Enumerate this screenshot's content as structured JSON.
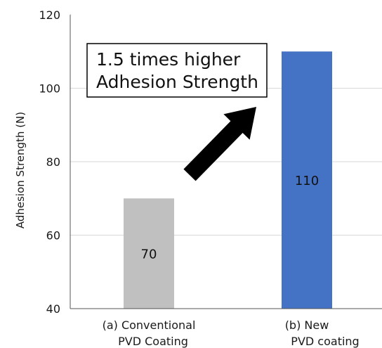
{
  "chart_data": {
    "type": "bar",
    "categories": [
      [
        "(a) Conventional",
        "PVD Coating"
      ],
      [
        "(b) New",
        "PVD coating"
      ]
    ],
    "values": [
      70,
      110
    ],
    "data_labels": [
      "70",
      "110"
    ],
    "bar_colors": [
      "#c0c0c0",
      "#4472c4"
    ],
    "ylabel": "Adhesion Strength (N)",
    "ylim": [
      40,
      120
    ],
    "yticks": [
      40,
      60,
      80,
      100,
      120
    ],
    "ytick_labels": [
      "40",
      "60",
      "80",
      "100",
      "120"
    ],
    "grid": true,
    "annotation": {
      "lines": [
        "1.5 times higher",
        "Adhesion Strength"
      ],
      "arrow": "up-right",
      "arrow_color": "#000000"
    }
  }
}
